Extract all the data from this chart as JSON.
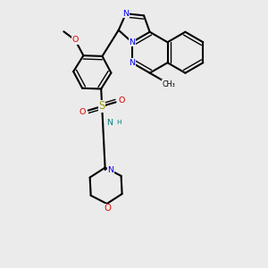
{
  "bg_color": "#ebebeb",
  "figsize": [
    3.0,
    3.0
  ],
  "dpi": 100,
  "colors": {
    "black": "#000000",
    "blue": "#0000EE",
    "red": "#DD0000",
    "sulfur": "#999900",
    "teal": "#008080",
    "white": "#ebebeb"
  },
  "layout": {
    "xlim": [
      0,
      1
    ],
    "ylim": [
      0,
      1
    ]
  }
}
